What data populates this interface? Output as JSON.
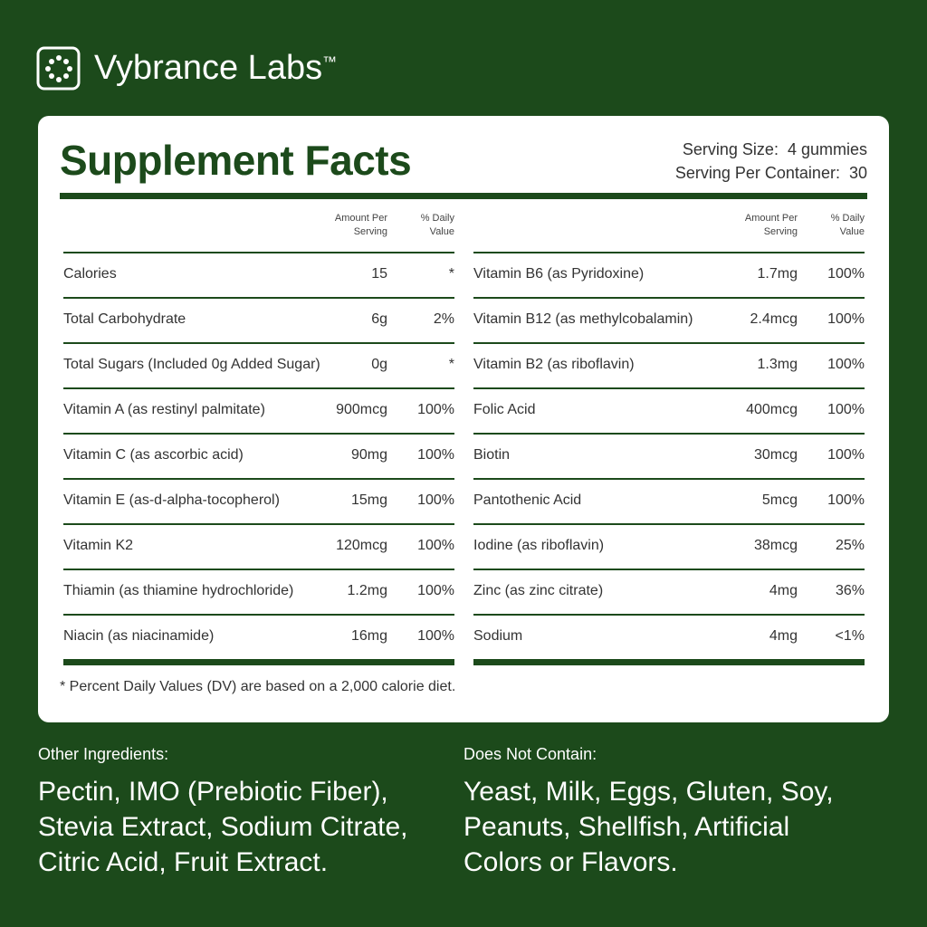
{
  "brand": {
    "name": "Vybrance Labs",
    "mark": "™"
  },
  "panel": {
    "title": "Supplement Facts",
    "serving_size": {
      "label": "Serving Size:",
      "value": "4 gummies"
    },
    "servings_per_container": {
      "label": "Serving Per Container:",
      "value": "30"
    },
    "columns": {
      "amount": [
        "Amount Per",
        "Serving"
      ],
      "daily_value": [
        "% Daily",
        "Value"
      ]
    },
    "tables": [
      {
        "rows": [
          [
            "Calories",
            "15",
            "*"
          ],
          [
            "Total Carbohydrate",
            "6g",
            "2%"
          ],
          [
            "Total Sugars (Included 0g Added Sugar)",
            "0g",
            "*"
          ],
          [
            "Vitamin A (as restinyl palmitate)",
            "900mcg",
            "100%"
          ],
          [
            "Vitamin C (as ascorbic acid)",
            "90mg",
            "100%"
          ],
          [
            "Vitamin E (as-d-alpha-tocopherol)",
            "15mg",
            "100%"
          ],
          [
            "Vitamin K2",
            "120mcg",
            "100%"
          ],
          [
            "Thiamin (as thiamine hydrochloride)",
            "1.2mg",
            "100%"
          ],
          [
            "Niacin (as niacinamide)",
            "16mg",
            "100%"
          ]
        ]
      },
      {
        "rows": [
          [
            "Vitamin B6 (as Pyridoxine)",
            "1.7mg",
            "100%"
          ],
          [
            "Vitamin B12 (as methylcobalamin)",
            "2.4mcg",
            "100%"
          ],
          [
            "Vitamin B2 (as riboflavin)",
            "1.3mg",
            "100%"
          ],
          [
            "Folic Acid",
            "400mcg",
            "100%"
          ],
          [
            "Biotin",
            "30mcg",
            "100%"
          ],
          [
            "Pantothenic Acid",
            "5mcg",
            "100%"
          ],
          [
            "Iodine (as riboflavin)",
            "38mcg",
            "25%"
          ],
          [
            "Zinc (as zinc citrate)",
            "4mg",
            "36%"
          ],
          [
            "Sodium",
            "4mg",
            "<1%"
          ]
        ]
      }
    ],
    "footnote": "* Percent Daily Values (DV) are based on a 2,000 calorie diet."
  },
  "other_ingredients": {
    "label": "Other Ingredients:",
    "lines": [
      "Pectin, IMO (Prebiotic Fiber),",
      "Stevia Extract, Sodium Citrate,",
      "Citric Acid, Fruit Extract."
    ]
  },
  "does_not_contain": {
    "label": "Does Not Contain:",
    "lines": [
      "Yeast, Milk, Eggs, Gluten, Soy,",
      "Peanuts, Shellfish, Artificial",
      "Colors or Flavors."
    ]
  }
}
